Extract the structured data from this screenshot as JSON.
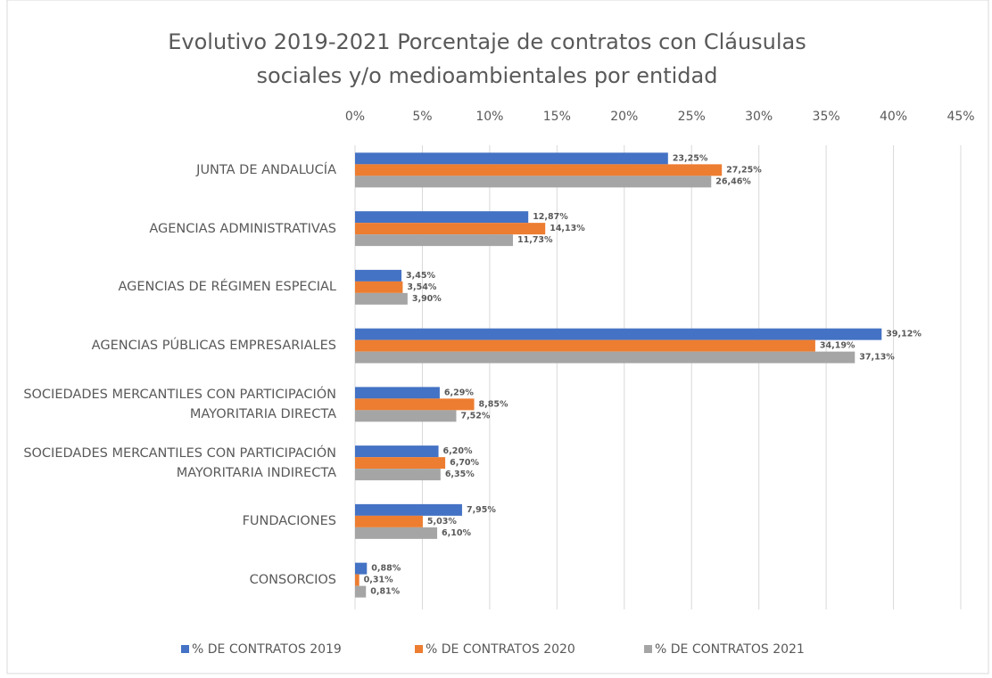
{
  "chart_data": {
    "type": "hbar",
    "title": "Evolutivo 2019-2021 Porcentaje de contratos con Cláusulas sociales y/o medioambientales por entidad",
    "categories": [
      "JUNTA DE ANDALUCÍA",
      "AGENCIAS ADMINISTRATIVAS",
      "AGENCIAS DE RÉGIMEN ESPECIAL",
      "AGENCIAS PÚBLICAS EMPRESARIALES",
      "SOCIEDADES MERCANTILES CON PARTICIPACIÓN MAYORITARIA DIRECTA",
      "SOCIEDADES MERCANTILES CON PARTICIPACIÓN MAYORITARIA INDIRECTA",
      "FUNDACIONES",
      "CONSORCIOS"
    ],
    "series": [
      {
        "name": "% DE CONTRATOS 2019",
        "color": "#4472c4",
        "values": [
          23.25,
          12.87,
          3.45,
          39.12,
          6.29,
          6.2,
          7.95,
          0.88
        ],
        "value_labels": [
          "23,25%",
          "12,87%",
          "3,45%",
          "39,12%",
          "6,29%",
          "6,20%",
          "7,95%",
          "0,88%"
        ]
      },
      {
        "name": "% DE CONTRATOS 2020",
        "color": "#ed7d31",
        "values": [
          27.25,
          14.13,
          3.54,
          34.19,
          8.85,
          6.7,
          5.03,
          0.31
        ],
        "value_labels": [
          "27,25%",
          "14,13%",
          "3,54%",
          "34,19%",
          "8,85%",
          "6,70%",
          "5,03%",
          "0,31%"
        ]
      },
      {
        "name": "% DE CONTRATOS 2021",
        "color": "#a5a5a5",
        "values": [
          26.46,
          11.73,
          3.9,
          37.13,
          7.52,
          6.35,
          6.1,
          0.81
        ],
        "value_labels": [
          "26,46%",
          "11,73%",
          "3,90%",
          "37,13%",
          "7,52%",
          "6,35%",
          "6,10%",
          "0,81%"
        ]
      }
    ],
    "xlim": [
      0,
      45
    ],
    "xticks": [
      {
        "value": 0,
        "label": "0%"
      },
      {
        "value": 5,
        "label": "5%"
      },
      {
        "value": 10,
        "label": "10%"
      },
      {
        "value": 15,
        "label": "15%"
      },
      {
        "value": 20,
        "label": "20%"
      },
      {
        "value": 25,
        "label": "25%"
      },
      {
        "value": 30,
        "label": "30%"
      },
      {
        "value": 35,
        "label": "35%"
      },
      {
        "value": 40,
        "label": "40%"
      },
      {
        "value": 45,
        "label": "45%"
      }
    ],
    "grid": true
  }
}
